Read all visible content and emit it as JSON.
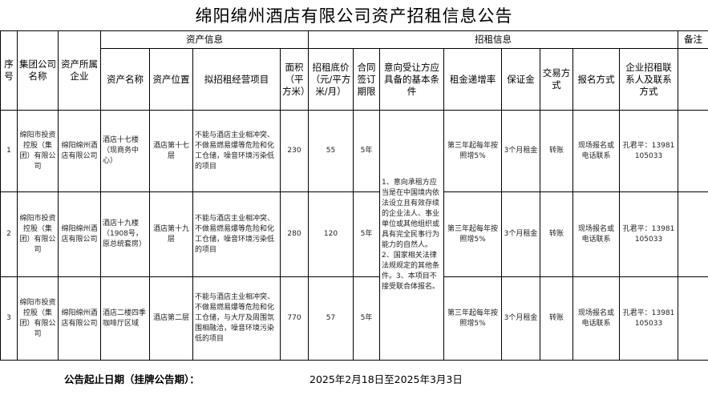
{
  "title": "绵阳绵州酒店有限公司资产招租信息公告",
  "headers": {
    "seq": "序号",
    "group": "集团公司名称",
    "owner": "资产所属企业",
    "asset_info": "资产信息",
    "rent_info": "招租信息",
    "remark": "备注",
    "asset_name": "资产名称",
    "asset_location": "资产位置",
    "business": "拟招租经营项目",
    "area": "面积（平方米）",
    "base_price": "招租底价（元/平方米/月）",
    "term": "合同签订期限",
    "conditions": "意向受让方应具备的基本条件",
    "increase": "租金递增率",
    "deposit": "保证金",
    "payment": "交易方式",
    "signup": "报名方式",
    "contact": "企业招租联系人及联系方式"
  },
  "rows": [
    {
      "seq": "1",
      "group": "绵阳市投资控股（集团）有限公司",
      "owner": "绵阳绵州酒店有限公司",
      "asset_name": "酒店十七楼（现商务中心）",
      "asset_location": "酒店第十七层",
      "business": "不能与酒店主业相冲突、不做易燃易爆等危险和化工仓储，噪音环境污染低的项目",
      "area": "230",
      "base_price": "55",
      "term": "5年",
      "increase": "第三年起每年按照增5%",
      "deposit": "3个月租金",
      "payment": "转账",
      "signup": "现场报名或电话联系",
      "contact": "孔君平：13981105033",
      "remark": ""
    },
    {
      "seq": "2",
      "group": "绵阳市投资控股（集团）有限公司",
      "owner": "绵阳绵州酒店有限公司",
      "asset_name": "酒店十九楼（1908号，原总统套房）",
      "asset_location": "酒店第十九层",
      "business": "不能与酒店主业相冲突、不做易燃易爆等危险和化工仓储，噪音环境污染低的项目",
      "area": "280",
      "base_price": "120",
      "term": "5年",
      "increase": "第三年起每年按照增5%",
      "deposit": "3个月租金",
      "payment": "转账",
      "signup": "现场报名或电话联系",
      "contact": "孔君平：13981105033",
      "remark": ""
    },
    {
      "seq": "3",
      "group": "绵阳市投资控股（集团）有限公司",
      "owner": "绵阳绵州酒店有限公司",
      "asset_name": "酒店二楼四季咖啡厅区域",
      "asset_location": "酒店第二层",
      "business": "不能与酒店主业相冲突、不做易燃易爆等危险和化工仓储，与大厅及周围氛围相融洽，噪音环境污染低的项目",
      "area": "770",
      "base_price": "57",
      "term": "5年",
      "increase": "第三年起每年按照增5%",
      "deposit": "3个月租金",
      "payment": "转账",
      "signup": "现场报名或电话联系",
      "contact": "孔君平：13981105033",
      "remark": ""
    }
  ],
  "conditions_text": "1、意向承租方应当是在中国境内依法设立且有效存续的企业法人、事业单位或其他组织或具有完全民事行为能力的自然人。2、国家相关法律法规规定的其他条件。3、本项目不接受联合体报名。",
  "footer": {
    "label": "公告起止日期（挂牌公告期）：",
    "value": "2025年2月18日至2025年3月3日"
  }
}
